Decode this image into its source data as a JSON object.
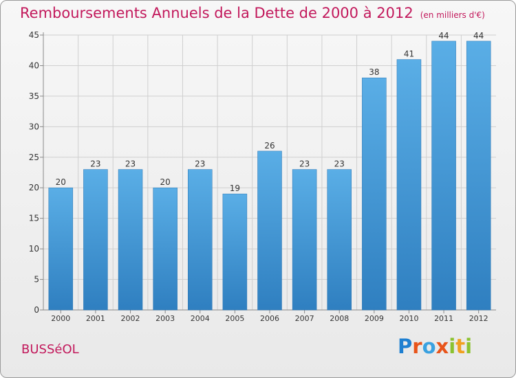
{
  "chart_data": {
    "type": "bar",
    "title": "Remboursements Annuels de la Dette de 2000 à 2012",
    "subtitle": "(en milliers d'€)",
    "categories": [
      "2000",
      "2001",
      "2002",
      "2003",
      "2004",
      "2005",
      "2006",
      "2007",
      "2008",
      "2009",
      "2010",
      "2011",
      "2012"
    ],
    "values": [
      20,
      23,
      23,
      20,
      23,
      19,
      26,
      23,
      23,
      38,
      41,
      44,
      44
    ],
    "xlabel": "",
    "ylabel": "",
    "ylim": [
      0,
      45
    ],
    "yticks": [
      0,
      5,
      10,
      15,
      20,
      25,
      30,
      35,
      40,
      45
    ],
    "grid": true,
    "bar_color": "#4a9fdc"
  },
  "footer": {
    "town": "BUSSéOL",
    "logo_letters": [
      "P",
      "r",
      "o",
      "x",
      "i",
      "t",
      "i"
    ],
    "logo_colors": [
      "#1e7fd1",
      "#e8541a",
      "#3aa1e0",
      "#e8541a",
      "#8bc22f",
      "#f0a020",
      "#8bc22f"
    ]
  }
}
